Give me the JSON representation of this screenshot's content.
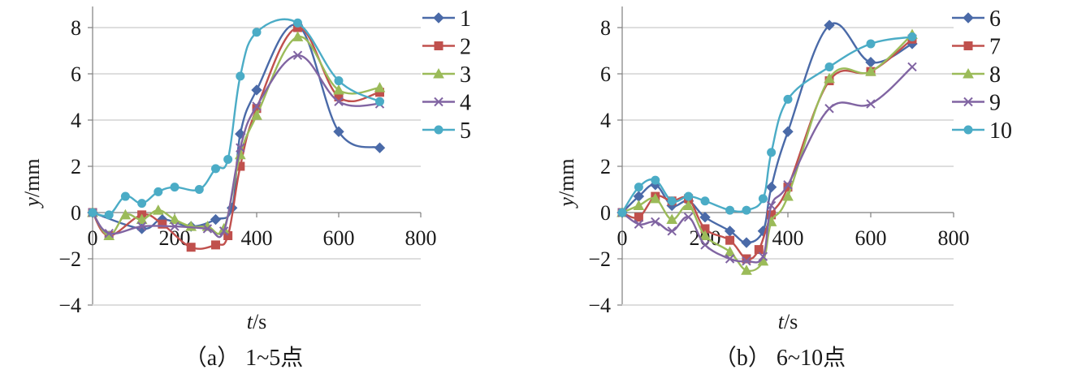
{
  "chart_data": [
    {
      "type": "line",
      "caption": "（a） 1~5点",
      "xlabel": "t/s",
      "ylabel": "y/mm",
      "xlim": [
        0,
        800
      ],
      "ylim": [
        -4,
        9
      ],
      "x_ticks": [
        0,
        200,
        400,
        600,
        800
      ],
      "y_ticks": [
        -4,
        -2,
        0,
        2,
        4,
        6,
        8
      ],
      "grid": "horizontal",
      "legend": "right",
      "series": [
        {
          "name": "1",
          "color": "#4a6aa8",
          "marker": "diamond",
          "x": [
            0,
            120,
            170,
            240,
            300,
            340,
            360,
            400,
            500,
            600,
            700
          ],
          "y": [
            0,
            -0.7,
            -0.3,
            -0.6,
            -0.3,
            0.2,
            3.4,
            5.3,
            8.1,
            3.5,
            2.8
          ]
        },
        {
          "name": "2",
          "color": "#c0504d",
          "marker": "square",
          "x": [
            0,
            40,
            120,
            170,
            240,
            300,
            330,
            360,
            400,
            500,
            600,
            700
          ],
          "y": [
            0,
            -1.0,
            -0.1,
            -0.5,
            -1.5,
            -1.4,
            -1.0,
            2.0,
            4.5,
            8.0,
            5.0,
            5.2
          ]
        },
        {
          "name": "3",
          "color": "#9bbb59",
          "marker": "triangle",
          "x": [
            0,
            40,
            80,
            120,
            160,
            200,
            240,
            280,
            320,
            360,
            400,
            500,
            600,
            700
          ],
          "y": [
            0,
            -1.0,
            -0.1,
            -0.3,
            0.1,
            -0.3,
            -0.6,
            -0.6,
            -0.7,
            2.5,
            4.2,
            7.6,
            5.3,
            5.4
          ]
        },
        {
          "name": "4",
          "color": "#8064a2",
          "marker": "x",
          "x": [
            0,
            40,
            120,
            200,
            280,
            320,
            360,
            400,
            500,
            600,
            700
          ],
          "y": [
            0,
            -0.9,
            -0.6,
            -0.6,
            -0.7,
            -0.8,
            2.8,
            4.6,
            6.8,
            4.8,
            4.7
          ]
        },
        {
          "name": "5",
          "color": "#4bacc6",
          "marker": "circle",
          "x": [
            0,
            40,
            80,
            120,
            160,
            200,
            260,
            300,
            330,
            360,
            400,
            500,
            600,
            700
          ],
          "y": [
            0,
            -0.1,
            0.7,
            0.4,
            0.9,
            1.1,
            1.0,
            1.9,
            2.3,
            5.9,
            7.8,
            8.2,
            5.7,
            4.8
          ]
        }
      ]
    },
    {
      "type": "line",
      "caption": "（b） 6~10点",
      "xlabel": "t/s",
      "ylabel": "y/mm",
      "xlim": [
        0,
        800
      ],
      "ylim": [
        -4,
        9
      ],
      "x_ticks": [
        0,
        200,
        400,
        600,
        800
      ],
      "y_ticks": [
        -4,
        -2,
        0,
        2,
        4,
        6,
        8
      ],
      "grid": "horizontal",
      "legend": "right",
      "series": [
        {
          "name": "6",
          "color": "#4a6aa8",
          "marker": "diamond",
          "x": [
            0,
            40,
            80,
            120,
            160,
            200,
            260,
            300,
            340,
            360,
            400,
            500,
            600,
            700
          ],
          "y": [
            0,
            0.7,
            1.2,
            0.3,
            0.5,
            -0.2,
            -0.8,
            -1.3,
            -0.8,
            1.1,
            3.5,
            8.1,
            6.5,
            7.3
          ]
        },
        {
          "name": "7",
          "color": "#c0504d",
          "marker": "square",
          "x": [
            0,
            40,
            80,
            120,
            160,
            200,
            260,
            300,
            330,
            360,
            400,
            500,
            600,
            700
          ],
          "y": [
            0,
            -0.2,
            0.7,
            0.5,
            0.6,
            -0.7,
            -1.2,
            -2.0,
            -1.6,
            -0.1,
            1.1,
            5.7,
            6.1,
            7.5
          ]
        },
        {
          "name": "8",
          "color": "#9bbb59",
          "marker": "triangle",
          "x": [
            0,
            40,
            80,
            120,
            160,
            200,
            260,
            300,
            340,
            360,
            400,
            500,
            600,
            700
          ],
          "y": [
            0,
            0.3,
            0.6,
            -0.3,
            0.3,
            -1.0,
            -1.7,
            -2.5,
            -2.1,
            -0.4,
            0.7,
            5.8,
            6.1,
            7.7
          ]
        },
        {
          "name": "9",
          "color": "#8064a2",
          "marker": "x",
          "x": [
            0,
            40,
            80,
            120,
            160,
            200,
            260,
            300,
            340,
            360,
            400,
            500,
            600,
            700
          ],
          "y": [
            0,
            -0.5,
            -0.4,
            -0.8,
            -0.2,
            -1.4,
            -2.0,
            -2.1,
            -1.9,
            0.3,
            1.2,
            4.5,
            4.7,
            6.3
          ]
        },
        {
          "name": "10",
          "color": "#4bacc6",
          "marker": "circle",
          "x": [
            0,
            40,
            80,
            120,
            160,
            200,
            260,
            300,
            340,
            360,
            400,
            500,
            600,
            700
          ],
          "y": [
            0,
            1.1,
            1.4,
            0.5,
            0.7,
            0.5,
            0.1,
            0.1,
            0.6,
            2.6,
            4.9,
            6.3,
            7.3,
            7.6
          ]
        }
      ]
    }
  ]
}
